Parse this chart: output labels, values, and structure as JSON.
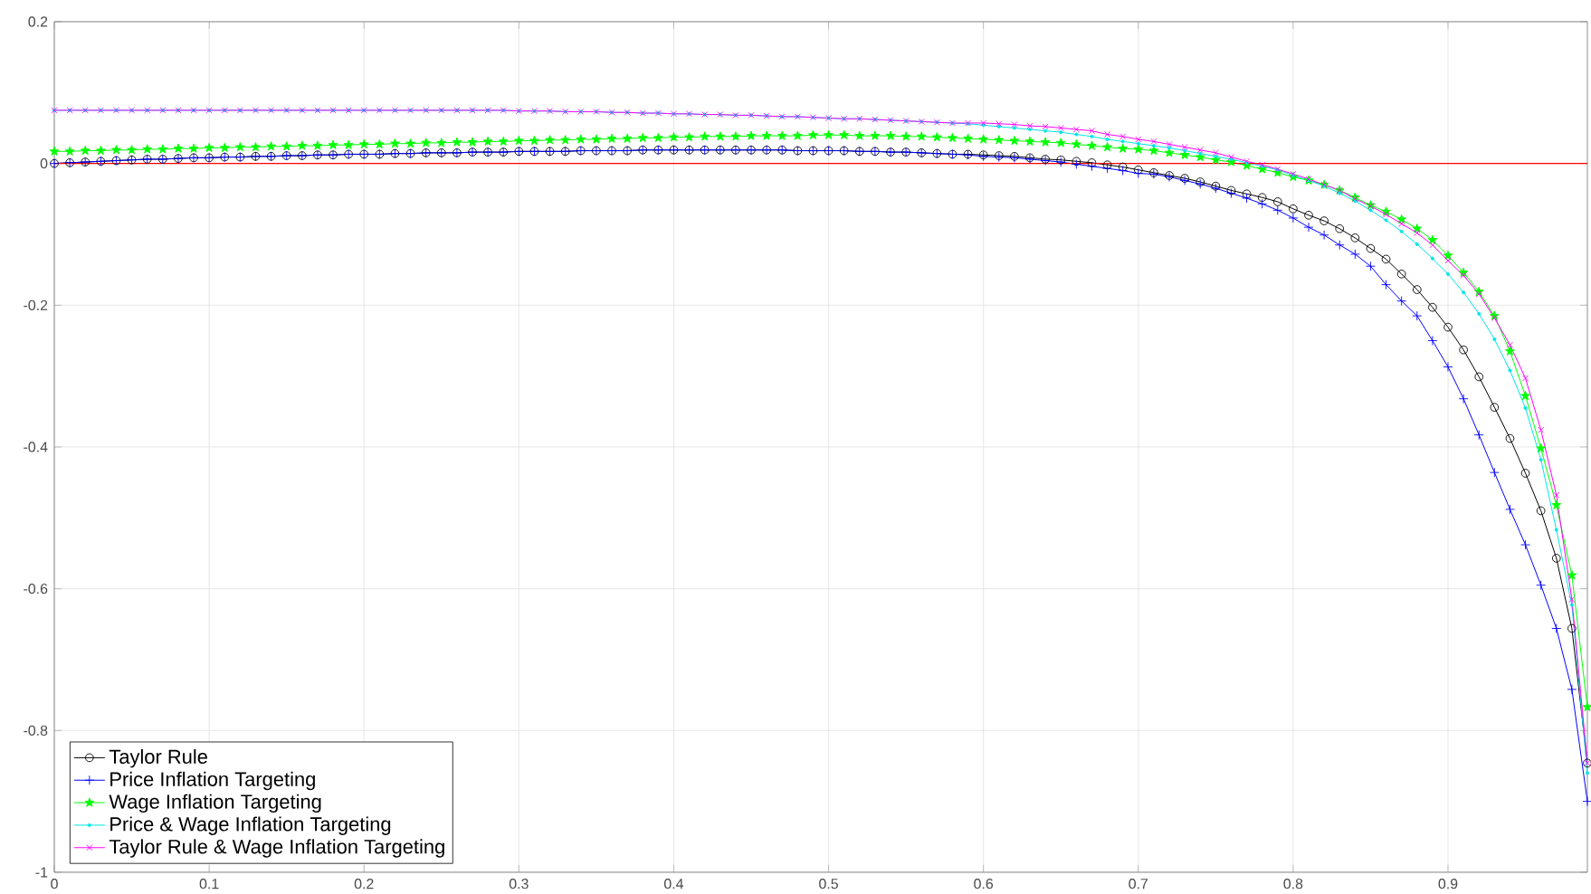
{
  "chart_data": {
    "type": "line",
    "x": [
      0,
      0.01,
      0.02,
      0.03,
      0.04,
      0.05,
      0.06,
      0.07,
      0.08,
      0.09,
      0.1,
      0.11,
      0.12,
      0.13,
      0.14,
      0.15,
      0.16,
      0.17,
      0.18,
      0.19,
      0.2,
      0.21,
      0.22,
      0.23,
      0.24,
      0.25,
      0.26,
      0.27,
      0.28,
      0.29,
      0.3,
      0.31,
      0.32,
      0.33,
      0.34,
      0.35,
      0.36,
      0.37,
      0.38,
      0.39,
      0.4,
      0.41,
      0.42,
      0.43,
      0.44,
      0.45,
      0.46,
      0.47,
      0.48,
      0.49,
      0.5,
      0.51,
      0.52,
      0.53,
      0.54,
      0.55,
      0.56,
      0.57,
      0.58,
      0.59,
      0.6,
      0.61,
      0.62,
      0.63,
      0.64,
      0.65,
      0.66,
      0.67,
      0.68,
      0.69,
      0.7,
      0.71,
      0.72,
      0.73,
      0.74,
      0.75,
      0.76,
      0.77,
      0.78,
      0.79,
      0.8,
      0.81,
      0.82,
      0.83,
      0.84,
      0.85,
      0.86,
      0.87,
      0.88,
      0.89,
      0.9,
      0.91,
      0.92,
      0.93,
      0.94,
      0.95,
      0.96,
      0.97,
      0.98,
      0.99
    ],
    "series": [
      {
        "name": "Taylor Rule",
        "color": "#000000",
        "marker": "circle",
        "values": [
          0,
          0.001,
          0.002,
          0.003,
          0.004,
          0.005,
          0.006,
          0.006,
          0.007,
          0.008,
          0.008,
          0.009,
          0.009,
          0.01,
          0.01,
          0.011,
          0.011,
          0.012,
          0.012,
          0.013,
          0.013,
          0.013,
          0.014,
          0.014,
          0.015,
          0.015,
          0.015,
          0.016,
          0.016,
          0.016,
          0.017,
          0.017,
          0.017,
          0.017,
          0.018,
          0.018,
          0.018,
          0.018,
          0.019,
          0.019,
          0.019,
          0.019,
          0.019,
          0.019,
          0.019,
          0.019,
          0.019,
          0.019,
          0.018,
          0.018,
          0.018,
          0.018,
          0.017,
          0.017,
          0.016,
          0.016,
          0.015,
          0.014,
          0.013,
          0.013,
          0.012,
          0.011,
          0.01,
          0.008,
          0.006,
          0.005,
          0.003,
          0.001,
          -0.002,
          -0.005,
          -0.009,
          -0.013,
          -0.017,
          -0.021,
          -0.026,
          -0.032,
          -0.038,
          -0.043,
          -0.048,
          -0.054,
          -0.064,
          -0.073,
          -0.081,
          -0.092,
          -0.105,
          -0.12,
          -0.135,
          -0.156,
          -0.178,
          -0.203,
          -0.231,
          -0.263,
          -0.301,
          -0.344,
          -0.388,
          -0.437,
          -0.49,
          -0.557,
          -0.656,
          -0.846
        ]
      },
      {
        "name": "Price Inflation Targeting",
        "color": "#0000ff",
        "marker": "plus",
        "values": [
          0,
          0.001,
          0.002,
          0.003,
          0.004,
          0.005,
          0.006,
          0.006,
          0.007,
          0.008,
          0.008,
          0.009,
          0.009,
          0.01,
          0.01,
          0.011,
          0.011,
          0.012,
          0.012,
          0.013,
          0.013,
          0.013,
          0.014,
          0.014,
          0.015,
          0.015,
          0.015,
          0.016,
          0.016,
          0.016,
          0.017,
          0.017,
          0.017,
          0.017,
          0.018,
          0.018,
          0.018,
          0.018,
          0.019,
          0.019,
          0.019,
          0.019,
          0.019,
          0.019,
          0.019,
          0.019,
          0.019,
          0.019,
          0.018,
          0.018,
          0.018,
          0.018,
          0.017,
          0.017,
          0.016,
          0.016,
          0.015,
          0.014,
          0.013,
          0.012,
          0.01,
          0.009,
          0.008,
          0.006,
          0.004,
          0.002,
          -0.001,
          -0.004,
          -0.007,
          -0.01,
          -0.014,
          -0.015,
          -0.019,
          -0.024,
          -0.029,
          -0.035,
          -0.042,
          -0.049,
          -0.057,
          -0.066,
          -0.077,
          -0.09,
          -0.101,
          -0.115,
          -0.128,
          -0.145,
          -0.171,
          -0.194,
          -0.215,
          -0.25,
          -0.287,
          -0.332,
          -0.383,
          -0.436,
          -0.488,
          -0.538,
          -0.595,
          -0.656,
          -0.742,
          -0.9
        ]
      },
      {
        "name": "Wage Inflation Targeting",
        "color": "#00ff00",
        "marker": "star",
        "values": [
          0.017,
          0.017,
          0.018,
          0.018,
          0.019,
          0.019,
          0.02,
          0.02,
          0.021,
          0.021,
          0.022,
          0.022,
          0.023,
          0.023,
          0.024,
          0.024,
          0.025,
          0.025,
          0.026,
          0.026,
          0.027,
          0.027,
          0.028,
          0.028,
          0.029,
          0.029,
          0.03,
          0.03,
          0.031,
          0.031,
          0.032,
          0.032,
          0.033,
          0.033,
          0.034,
          0.034,
          0.035,
          0.035,
          0.036,
          0.036,
          0.037,
          0.037,
          0.038,
          0.038,
          0.038,
          0.039,
          0.039,
          0.039,
          0.039,
          0.04,
          0.04,
          0.04,
          0.039,
          0.039,
          0.039,
          0.038,
          0.038,
          0.037,
          0.036,
          0.035,
          0.034,
          0.033,
          0.032,
          0.031,
          0.03,
          0.029,
          0.027,
          0.025,
          0.023,
          0.021,
          0.02,
          0.018,
          0.015,
          0.012,
          0.009,
          0.005,
          0.002,
          -0.003,
          -0.008,
          -0.013,
          -0.019,
          -0.024,
          -0.03,
          -0.038,
          -0.048,
          -0.059,
          -0.068,
          -0.079,
          -0.092,
          -0.108,
          -0.13,
          -0.154,
          -0.181,
          -0.215,
          -0.265,
          -0.328,
          -0.402,
          -0.482,
          -0.581,
          -0.767
        ]
      },
      {
        "name": "Price & Wage Inflation Targeting",
        "color": "#00e5e5",
        "marker": "point",
        "values": [
          0.075,
          0.075,
          0.075,
          0.075,
          0.075,
          0.075,
          0.075,
          0.075,
          0.075,
          0.075,
          0.075,
          0.075,
          0.075,
          0.075,
          0.075,
          0.075,
          0.075,
          0.075,
          0.075,
          0.075,
          0.075,
          0.075,
          0.075,
          0.075,
          0.075,
          0.075,
          0.075,
          0.075,
          0.075,
          0.075,
          0.074,
          0.074,
          0.074,
          0.073,
          0.073,
          0.073,
          0.072,
          0.072,
          0.071,
          0.071,
          0.07,
          0.07,
          0.069,
          0.069,
          0.068,
          0.068,
          0.067,
          0.066,
          0.066,
          0.065,
          0.064,
          0.063,
          0.063,
          0.062,
          0.061,
          0.06,
          0.059,
          0.058,
          0.057,
          0.056,
          0.054,
          0.052,
          0.05,
          0.048,
          0.046,
          0.044,
          0.041,
          0.038,
          0.034,
          0.031,
          0.028,
          0.025,
          0.022,
          0.018,
          0.014,
          0.01,
          0.006,
          0.001,
          -0.004,
          -0.009,
          -0.017,
          -0.024,
          -0.032,
          -0.042,
          -0.053,
          -0.066,
          -0.08,
          -0.096,
          -0.114,
          -0.134,
          -0.156,
          -0.182,
          -0.212,
          -0.248,
          -0.292,
          -0.345,
          -0.418,
          -0.517,
          -0.623,
          -0.86
        ]
      },
      {
        "name": "Taylor Rule & Wage Inflation Targeting",
        "color": "#ff00ff",
        "marker": "cross",
        "values": [
          0.075,
          0.075,
          0.075,
          0.075,
          0.075,
          0.075,
          0.075,
          0.075,
          0.075,
          0.075,
          0.075,
          0.075,
          0.075,
          0.075,
          0.075,
          0.075,
          0.075,
          0.075,
          0.075,
          0.075,
          0.075,
          0.075,
          0.075,
          0.075,
          0.075,
          0.075,
          0.075,
          0.075,
          0.075,
          0.075,
          0.074,
          0.074,
          0.074,
          0.073,
          0.073,
          0.073,
          0.072,
          0.072,
          0.071,
          0.071,
          0.07,
          0.07,
          0.069,
          0.069,
          0.068,
          0.068,
          0.067,
          0.066,
          0.066,
          0.065,
          0.064,
          0.063,
          0.063,
          0.062,
          0.061,
          0.06,
          0.059,
          0.058,
          0.057,
          0.057,
          0.057,
          0.056,
          0.055,
          0.053,
          0.052,
          0.05,
          0.048,
          0.046,
          0.041,
          0.038,
          0.034,
          0.031,
          0.027,
          0.023,
          0.019,
          0.015,
          0.009,
          0.003,
          -0.002,
          -0.008,
          -0.015,
          -0.022,
          -0.03,
          -0.038,
          -0.05,
          -0.06,
          -0.072,
          -0.085,
          -0.098,
          -0.115,
          -0.137,
          -0.158,
          -0.184,
          -0.218,
          -0.256,
          -0.303,
          -0.376,
          -0.468,
          -0.615,
          -0.846
        ]
      }
    ],
    "xlim": [
      0,
      0.99
    ],
    "ylim": [
      -1,
      0.2
    ],
    "xticks": [
      0,
      0.1,
      0.2,
      0.3,
      0.4,
      0.5,
      0.6,
      0.7,
      0.8,
      0.9
    ],
    "yticks": [
      -1,
      -0.8,
      -0.6,
      -0.4,
      -0.2,
      0,
      0.2
    ],
    "ref_lines": [
      {
        "axis": "y",
        "value": 0,
        "color": "#ff0000"
      }
    ],
    "grid": true,
    "legend": "bottom left",
    "line_style": "solid"
  }
}
